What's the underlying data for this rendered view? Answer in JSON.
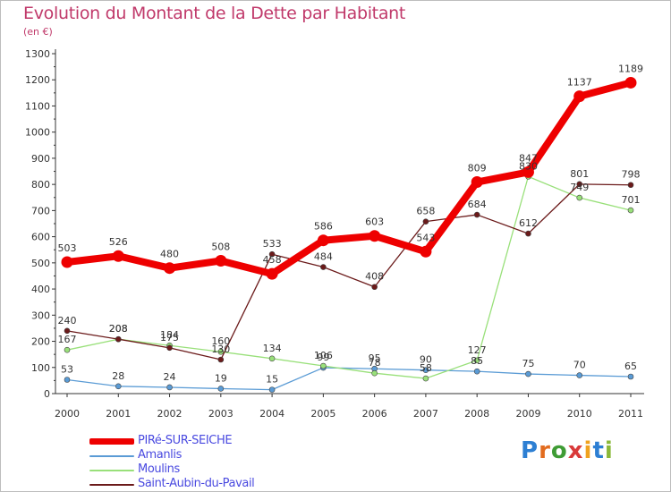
{
  "header": {
    "title": "Evolution du Montant de la Dette par Habitant",
    "unit": "(en €)"
  },
  "logo": {
    "text": "Proxiti",
    "colors": [
      "#2d7fd3",
      "#e26c1f",
      "#3f9c35",
      "#d93a3a",
      "#f0a21e",
      "#2d7fd3",
      "#8bb83a"
    ]
  },
  "chart_data": {
    "type": "line",
    "title": "Evolution du Montant de la Dette par Habitant",
    "ylabel": "(en €)",
    "xlabel": "",
    "x": [
      "2000",
      "2001",
      "2002",
      "2003",
      "2004",
      "2005",
      "2006",
      "2007",
      "2008",
      "2009",
      "2010",
      "2011"
    ],
    "ylim": [
      0,
      1300
    ],
    "yticks": [
      0,
      100,
      200,
      300,
      400,
      500,
      600,
      700,
      800,
      900,
      1000,
      1100,
      1200,
      1300
    ],
    "grid": false,
    "legend_position": "bottom-left",
    "series": [
      {
        "name": "PIRé-SUR-SEICHE",
        "color": "#ee0000",
        "values": [
          503,
          526,
          480,
          508,
          458,
          586,
          603,
          543,
          809,
          847,
          1137,
          1189
        ]
      },
      {
        "name": "Amanlis",
        "color": "#5a9bd5",
        "values": [
          53,
          28,
          24,
          19,
          15,
          99,
          95,
          90,
          85,
          75,
          70,
          65
        ]
      },
      {
        "name": "Moulins",
        "color": "#99e07a",
        "values": [
          167,
          208,
          184,
          160,
          134,
          106,
          78,
          58,
          127,
          830,
          749,
          701
        ]
      },
      {
        "name": "Saint-Aubin-du-Pavail",
        "color": "#6b1a1a",
        "values": [
          240,
          208,
          175,
          130,
          533,
          484,
          408,
          658,
          684,
          612,
          801,
          798
        ]
      }
    ]
  }
}
